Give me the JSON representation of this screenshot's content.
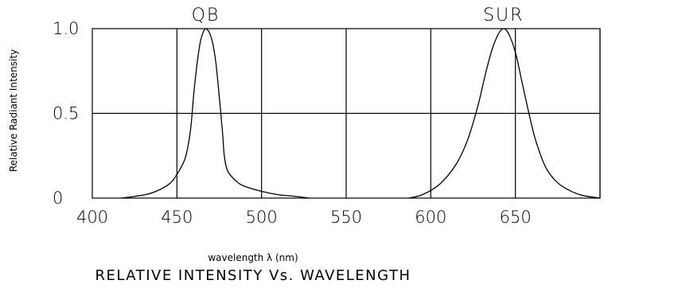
{
  "chart_data": {
    "type": "line",
    "title": "RELATIVE INTENSITY Vs. WAVELENGTH",
    "xlabel": "wavelength λ (nm)",
    "ylabel": "Relative Radiant Intensity",
    "xlim": [
      400,
      700
    ],
    "ylim": [
      0,
      1.0
    ],
    "x_ticks": [
      400,
      450,
      500,
      550,
      600,
      650
    ],
    "y_ticks": [
      {
        "value": 0,
        "label": "0"
      },
      {
        "value": 0.5,
        "label": "0.5"
      },
      {
        "value": 1.0,
        "label": "1.0"
      }
    ],
    "x_grid": [
      450,
      500,
      550,
      600,
      650,
      700
    ],
    "y_grid": [
      0.5
    ],
    "grid": true,
    "peak_labels": [
      {
        "text": "QB",
        "x": 467
      },
      {
        "text": "SUR",
        "x": 643
      }
    ],
    "series": [
      {
        "x": [
          417,
          425,
          435,
          445,
          450,
          455,
          458,
          460,
          462,
          464,
          466,
          467,
          469,
          471,
          473,
          475,
          477,
          478,
          480,
          485,
          490,
          500,
          510,
          520,
          528
        ],
        "y": [
          0.0,
          0.01,
          0.03,
          0.08,
          0.14,
          0.24,
          0.4,
          0.62,
          0.8,
          0.93,
          0.99,
          1.0,
          0.98,
          0.92,
          0.8,
          0.6,
          0.38,
          0.25,
          0.16,
          0.1,
          0.07,
          0.04,
          0.02,
          0.01,
          0.0
        ]
      },
      {
        "x": [
          587,
          595,
          605,
          615,
          622,
          628,
          632,
          636,
          640,
          643,
          646,
          650,
          654,
          658,
          662,
          668,
          675,
          683,
          690,
          700
        ],
        "y": [
          0.0,
          0.02,
          0.08,
          0.2,
          0.35,
          0.55,
          0.72,
          0.87,
          0.97,
          1.0,
          0.97,
          0.86,
          0.68,
          0.5,
          0.34,
          0.18,
          0.09,
          0.04,
          0.015,
          0.0
        ]
      }
    ]
  }
}
